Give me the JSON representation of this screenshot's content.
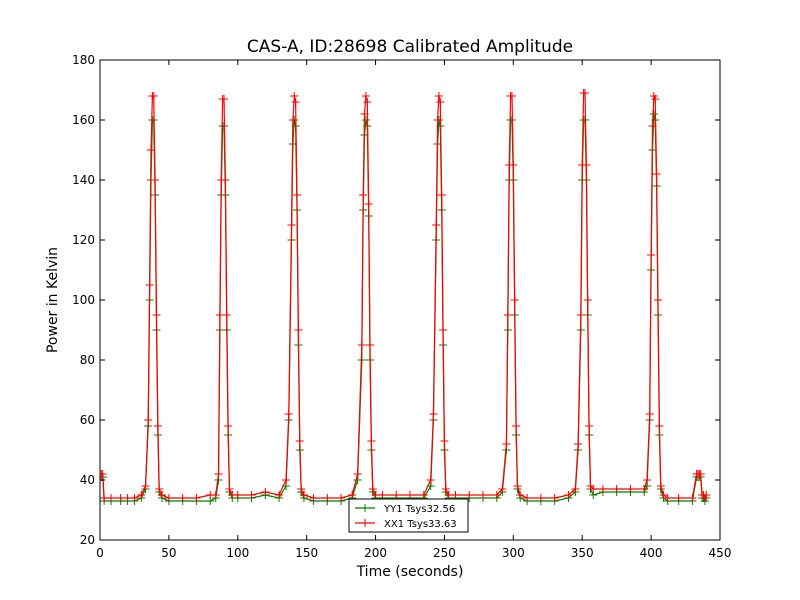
{
  "chart_data": {
    "type": "line",
    "title": "CAS-A, ID:28698 Calibrated Amplitude",
    "xlabel": "Time (seconds)",
    "ylabel": "Power in Kelvin",
    "xlim": [
      0,
      450
    ],
    "ylim": [
      20,
      180
    ],
    "xticks": [
      0,
      50,
      100,
      150,
      200,
      250,
      300,
      350,
      400,
      450
    ],
    "yticks": [
      20,
      40,
      60,
      80,
      100,
      120,
      140,
      160,
      180
    ],
    "grid": false,
    "legend_position": "bottom-center",
    "marker": "plus",
    "series": [
      {
        "name": "YY1 Tsys32.56",
        "color": "#008000",
        "x": [
          1,
          2,
          3,
          8,
          15,
          20,
          25,
          30,
          33,
          35,
          36,
          37,
          38,
          39,
          40,
          41,
          42,
          43,
          45,
          50,
          60,
          70,
          80,
          84,
          86,
          87,
          88,
          89,
          90,
          91,
          92,
          93,
          94,
          96,
          100,
          110,
          120,
          130,
          135,
          137,
          139,
          140,
          141,
          142,
          143,
          144,
          145,
          146,
          148,
          155,
          165,
          175,
          183,
          187,
          190,
          191,
          192,
          193,
          194,
          195,
          196,
          197,
          198,
          200,
          205,
          215,
          225,
          235,
          240,
          242,
          244,
          245,
          246,
          247,
          248,
          249,
          250,
          251,
          253,
          258,
          268,
          278,
          288,
          292,
          295,
          296,
          297,
          298,
          299,
          300,
          301,
          302,
          303,
          305,
          310,
          320,
          330,
          340,
          345,
          347,
          349,
          350,
          351,
          352,
          353,
          354,
          355,
          356,
          358,
          365,
          375,
          385,
          395,
          397,
          399,
          400,
          401,
          402,
          403,
          404,
          405,
          406,
          407,
          409,
          412,
          420,
          430,
          433,
          434,
          435,
          436,
          437,
          438,
          439,
          440
        ],
        "y": [
          41,
          41,
          33,
          33,
          33,
          33,
          33,
          34,
          37,
          58,
          100,
          140,
          160,
          160,
          135,
          90,
          55,
          36,
          34,
          33,
          33,
          33,
          33,
          34,
          40,
          90,
          135,
          158,
          158,
          135,
          90,
          55,
          36,
          34,
          34,
          34,
          35,
          34,
          38,
          60,
          120,
          152,
          160,
          158,
          130,
          85,
          50,
          36,
          34,
          33,
          33,
          33,
          34,
          40,
          80,
          130,
          155,
          160,
          158,
          128,
          80,
          50,
          36,
          34,
          34,
          34,
          34,
          34,
          38,
          60,
          120,
          152,
          160,
          158,
          130,
          85,
          50,
          36,
          34,
          34,
          34,
          34,
          34,
          36,
          50,
          90,
          140,
          160,
          160,
          140,
          95,
          55,
          37,
          34,
          33,
          33,
          33,
          34,
          36,
          50,
          90,
          140,
          160,
          160,
          140,
          95,
          55,
          37,
          35,
          36,
          36,
          36,
          36,
          38,
          60,
          110,
          150,
          162,
          160,
          138,
          95,
          55,
          37,
          34,
          33,
          33,
          33,
          41,
          41,
          41,
          41,
          34,
          34,
          33,
          34
        ]
      },
      {
        "name": "XX1 Tsys33.63",
        "color": "#ff0000",
        "x": [
          1,
          2,
          3,
          8,
          15,
          20,
          25,
          30,
          33,
          35,
          36,
          37,
          38,
          39,
          40,
          41,
          42,
          43,
          45,
          50,
          60,
          70,
          80,
          84,
          86,
          87,
          88,
          89,
          90,
          91,
          92,
          93,
          94,
          96,
          100,
          110,
          120,
          130,
          135,
          137,
          139,
          140,
          141,
          142,
          143,
          144,
          145,
          146,
          148,
          155,
          165,
          175,
          183,
          187,
          190,
          191,
          192,
          193,
          194,
          195,
          196,
          197,
          198,
          200,
          205,
          215,
          225,
          235,
          240,
          242,
          244,
          245,
          246,
          247,
          248,
          249,
          250,
          251,
          253,
          258,
          268,
          278,
          288,
          292,
          295,
          296,
          297,
          298,
          299,
          300,
          301,
          302,
          303,
          305,
          310,
          320,
          330,
          340,
          345,
          347,
          349,
          350,
          351,
          352,
          353,
          354,
          355,
          356,
          358,
          365,
          375,
          385,
          395,
          397,
          399,
          400,
          401,
          402,
          403,
          404,
          405,
          406,
          407,
          409,
          412,
          420,
          430,
          433,
          434,
          435,
          436,
          437,
          438,
          439,
          440
        ],
        "y": [
          42,
          42,
          34,
          34,
          34,
          34,
          34,
          35,
          38,
          60,
          105,
          150,
          168,
          168,
          140,
          95,
          58,
          37,
          35,
          34,
          34,
          34,
          35,
          35,
          42,
          95,
          140,
          167,
          167,
          140,
          95,
          58,
          37,
          35,
          35,
          35,
          36,
          35,
          40,
          62,
          125,
          160,
          168,
          166,
          135,
          90,
          53,
          37,
          35,
          34,
          34,
          34,
          35,
          42,
          85,
          135,
          162,
          168,
          166,
          132,
          85,
          53,
          37,
          35,
          35,
          35,
          35,
          35,
          40,
          62,
          125,
          160,
          168,
          166,
          135,
          90,
          53,
          37,
          35,
          35,
          35,
          35,
          35,
          37,
          52,
          95,
          145,
          168,
          168,
          145,
          100,
          58,
          38,
          35,
          34,
          34,
          34,
          35,
          37,
          52,
          95,
          145,
          169,
          169,
          145,
          100,
          58,
          38,
          37,
          37,
          37,
          37,
          37,
          40,
          62,
          115,
          158,
          168,
          167,
          142,
          100,
          58,
          38,
          35,
          34,
          34,
          34,
          42,
          42,
          42,
          42,
          35,
          35,
          34,
          35
        ]
      }
    ]
  }
}
